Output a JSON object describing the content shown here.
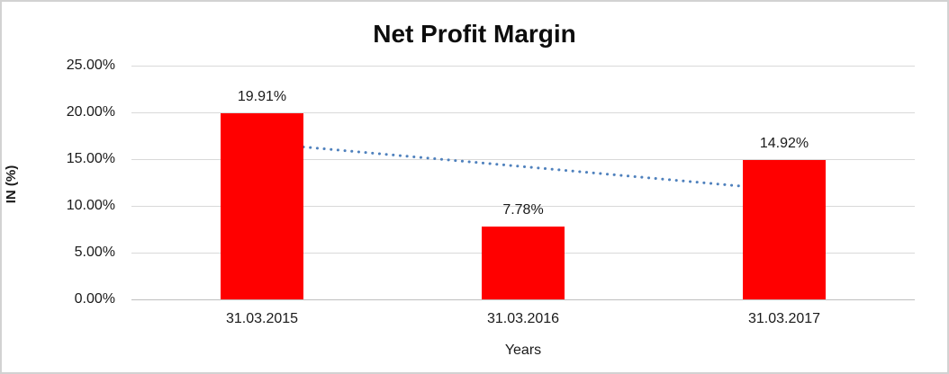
{
  "chart_data": {
    "type": "bar",
    "title": "Net Profit Margin",
    "categories": [
      "31.03.2015",
      "31.03.2016",
      "31.03.2017"
    ],
    "values": [
      19.91,
      7.78,
      14.92
    ],
    "data_labels": [
      "19.91%",
      "7.78%",
      "14.92%"
    ],
    "xlabel": "Years",
    "ylabel": "IN (%)",
    "ylim": [
      0,
      25
    ],
    "ytick_step": 5,
    "ytick_labels": [
      "0.00%",
      "5.00%",
      "10.00%",
      "15.00%",
      "20.00%",
      "25.00%"
    ],
    "grid": true,
    "legend_position": "none",
    "colors": {
      "bar": "#ff0000",
      "trendline": "#4f81bd",
      "gridline": "#d9d9d9",
      "axis_line": "#bfbfbf",
      "text": "#1a1a1a",
      "border": "#d2d2d2",
      "background": "#ffffff"
    },
    "trendline": {
      "type": "linear",
      "style": "dotted",
      "start_value": 16.7,
      "end_value": 11.7,
      "spans_categories": [
        0,
        2
      ]
    }
  }
}
